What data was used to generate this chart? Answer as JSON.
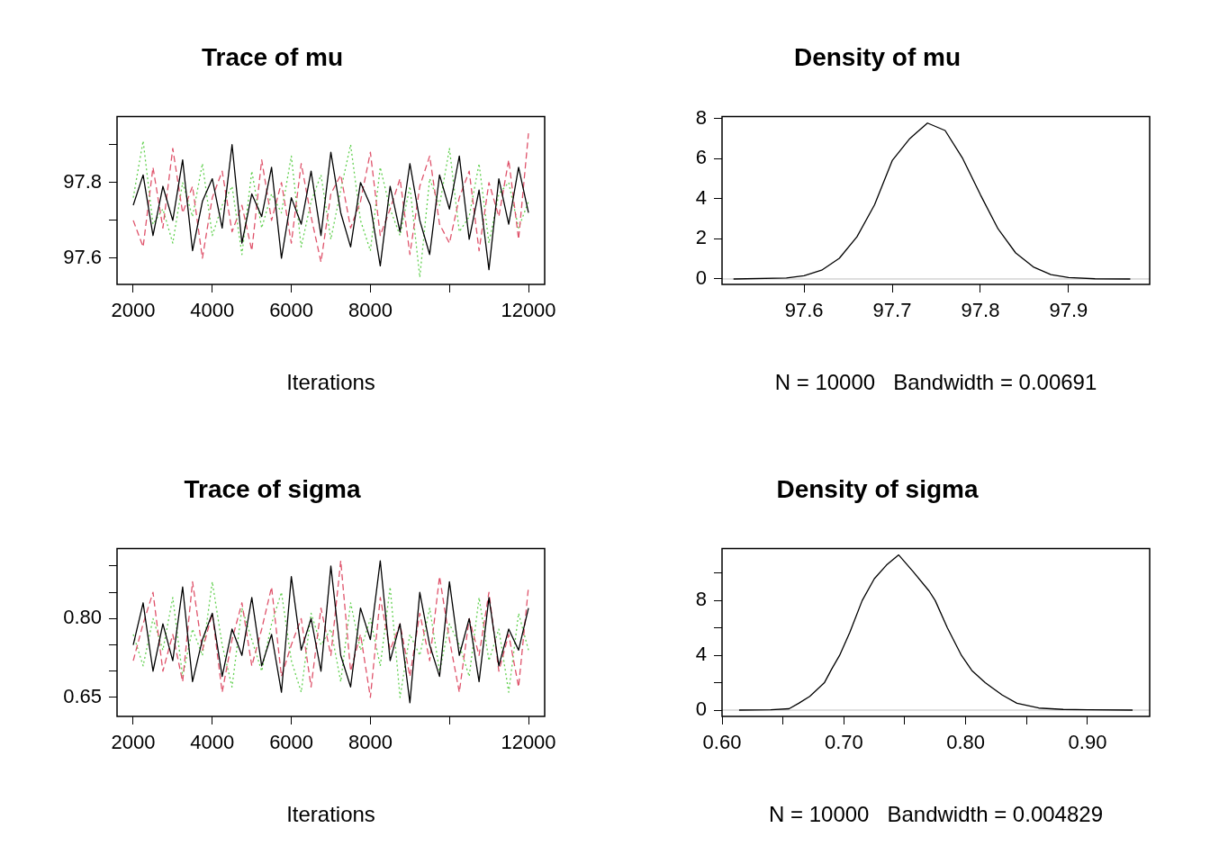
{
  "chart_data": [
    {
      "type": "line",
      "title": "Trace of mu",
      "xlabel": "Iterations",
      "grid": false,
      "legend": false,
      "x": [
        2000,
        2250,
        2500,
        2750,
        3000,
        3250,
        3500,
        3750,
        4000,
        4250,
        4500,
        4750,
        5000,
        5250,
        5500,
        5750,
        6000,
        6250,
        6500,
        6750,
        7000,
        7250,
        7500,
        7750,
        8000,
        8250,
        8500,
        8750,
        9000,
        9250,
        9500,
        9750,
        10000,
        10250,
        10500,
        10750,
        11000,
        11250,
        11500,
        11750,
        12000
      ],
      "xlim": [
        1590,
        12410
      ],
      "xticks": [
        2000,
        4000,
        6000,
        8000,
        {
          "value": 10000,
          "label": null
        },
        12000
      ],
      "ylim": [
        97.531,
        97.974
      ],
      "yticks": [
        97.6,
        {
          "value": 97.7,
          "label": null
        },
        97.8,
        {
          "value": 97.9,
          "label": null
        }
      ],
      "series": [
        {
          "color": "#000000",
          "line_style": "solid",
          "values": [
            97.74,
            97.82,
            97.66,
            97.79,
            97.7,
            97.86,
            97.62,
            97.75,
            97.81,
            97.68,
            97.9,
            97.64,
            97.77,
            97.71,
            97.84,
            97.6,
            97.76,
            97.69,
            97.83,
            97.66,
            97.88,
            97.72,
            97.63,
            97.8,
            97.74,
            97.58,
            97.79,
            97.67,
            97.85,
            97.7,
            97.61,
            97.82,
            97.73,
            97.87,
            97.65,
            97.78,
            97.57,
            97.81,
            97.69,
            97.84,
            97.72
          ]
        },
        {
          "color": "#df536b",
          "line_style": "dashed",
          "values": [
            97.7,
            97.63,
            97.84,
            97.68,
            97.89,
            97.72,
            97.79,
            97.6,
            97.76,
            97.83,
            97.67,
            97.74,
            97.62,
            97.86,
            97.7,
            97.8,
            97.64,
            97.85,
            97.71,
            97.59,
            97.77,
            97.82,
            97.68,
            97.75,
            97.88,
            97.66,
            97.73,
            97.81,
            97.61,
            97.79,
            97.87,
            97.69,
            97.64,
            97.76,
            97.83,
            97.62,
            97.8,
            97.71,
            97.86,
            97.65,
            97.93
          ]
        },
        {
          "color": "#61d04f",
          "line_style": "dotted",
          "values": [
            97.76,
            97.91,
            97.69,
            97.73,
            97.64,
            97.8,
            97.71,
            97.85,
            97.66,
            97.74,
            97.79,
            97.61,
            97.83,
            97.68,
            97.77,
            97.72,
            97.87,
            97.63,
            97.75,
            97.82,
            97.65,
            97.78,
            97.9,
            97.7,
            97.62,
            97.84,
            97.73,
            97.66,
            97.79,
            97.55,
            97.81,
            97.74,
            97.89,
            97.67,
            97.71,
            97.85,
            97.64,
            97.77,
            97.8,
            97.68,
            97.75
          ]
        }
      ]
    },
    {
      "type": "line",
      "title": "Density of mu",
      "xlabel": "N = 10000   Bandwidth = 0.00691",
      "grid": false,
      "legend": false,
      "x": [
        97.52,
        97.58,
        97.6,
        97.62,
        97.64,
        97.66,
        97.68,
        97.7,
        97.72,
        97.74,
        97.76,
        97.78,
        97.8,
        97.82,
        97.84,
        97.86,
        97.88,
        97.9,
        97.93,
        97.97
      ],
      "xlim": [
        97.507,
        97.992
      ],
      "xticks": [
        97.6,
        97.7,
        97.8,
        97.9
      ],
      "ylim": [
        -0.27,
        8.09
      ],
      "yticks": [
        0,
        2,
        4,
        6,
        8
      ],
      "ref_lines": [
        {
          "axis": "y",
          "value": 0,
          "color": "#bebebe"
        }
      ],
      "series": [
        {
          "color": "#000000",
          "values": [
            0,
            0.05,
            0.16,
            0.44,
            1.03,
            2.1,
            3.7,
            5.9,
            7.0,
            7.77,
            7.4,
            6.0,
            4.2,
            2.5,
            1.3,
            0.6,
            0.22,
            0.07,
            0.01,
            0
          ]
        }
      ]
    },
    {
      "type": "line",
      "title": "Trace of sigma",
      "xlabel": "Iterations",
      "grid": false,
      "legend": false,
      "x": [
        2000,
        2250,
        2500,
        2750,
        3000,
        3250,
        3500,
        3750,
        4000,
        4250,
        4500,
        4750,
        5000,
        5250,
        5500,
        5750,
        6000,
        6250,
        6500,
        6750,
        7000,
        7250,
        7500,
        7750,
        8000,
        8250,
        8500,
        8750,
        9000,
        9250,
        9500,
        9750,
        10000,
        10250,
        10500,
        10750,
        11000,
        11250,
        11500,
        11750,
        12000
      ],
      "xlim": [
        1590,
        12410
      ],
      "xticks": [
        2000,
        4000,
        6000,
        8000,
        {
          "value": 10000,
          "label": null
        },
        12000
      ],
      "ylim": [
        0.614,
        0.933
      ],
      "yticks": [
        0.65,
        {
          "value": 0.7,
          "label": null
        },
        {
          "value": 0.75,
          "label": null
        },
        {
          "value": 0.8,
          "label": "0.80"
        },
        {
          "value": 0.85,
          "label": null
        },
        {
          "value": 0.9,
          "label": null
        }
      ],
      "series": [
        {
          "color": "#000000",
          "line_style": "solid",
          "values": [
            0.75,
            0.83,
            0.7,
            0.79,
            0.72,
            0.86,
            0.68,
            0.76,
            0.81,
            0.69,
            0.78,
            0.73,
            0.84,
            0.71,
            0.77,
            0.66,
            0.88,
            0.74,
            0.8,
            0.7,
            0.9,
            0.73,
            0.67,
            0.82,
            0.76,
            0.91,
            0.72,
            0.79,
            0.64,
            0.85,
            0.75,
            0.69,
            0.87,
            0.73,
            0.8,
            0.68,
            0.84,
            0.71,
            0.78,
            0.74,
            0.82
          ]
        },
        {
          "color": "#df536b",
          "line_style": "dashed",
          "values": [
            0.72,
            0.79,
            0.85,
            0.7,
            0.77,
            0.68,
            0.87,
            0.74,
            0.81,
            0.66,
            0.76,
            0.83,
            0.71,
            0.78,
            0.86,
            0.69,
            0.75,
            0.8,
            0.67,
            0.82,
            0.73,
            0.91,
            0.7,
            0.77,
            0.65,
            0.84,
            0.74,
            0.79,
            0.69,
            0.81,
            0.72,
            0.88,
            0.76,
            0.66,
            0.8,
            0.73,
            0.85,
            0.7,
            0.77,
            0.67,
            0.86
          ]
        },
        {
          "color": "#61d04f",
          "line_style": "dotted",
          "values": [
            0.77,
            0.71,
            0.8,
            0.74,
            0.84,
            0.69,
            0.78,
            0.73,
            0.87,
            0.75,
            0.67,
            0.82,
            0.76,
            0.7,
            0.79,
            0.85,
            0.72,
            0.66,
            0.81,
            0.75,
            0.78,
            0.68,
            0.83,
            0.74,
            0.8,
            0.71,
            0.86,
            0.65,
            0.77,
            0.73,
            0.82,
            0.7,
            0.79,
            0.75,
            0.69,
            0.84,
            0.72,
            0.78,
            0.66,
            0.81,
            0.74
          ]
        }
      ]
    },
    {
      "type": "line",
      "title": "Density of sigma",
      "xlabel": "N = 10000   Bandwidth = 0.004829",
      "grid": false,
      "legend": false,
      "x": [
        0.614,
        0.64,
        0.655,
        0.663,
        0.672,
        0.684,
        0.69,
        0.6965,
        0.705,
        0.715,
        0.725,
        0.735,
        0.745,
        0.757,
        0.77,
        0.775,
        0.785,
        0.7965,
        0.805,
        0.816,
        0.83,
        0.842,
        0.86,
        0.88,
        0.9,
        0.937
      ],
      "xlim": [
        0.6,
        0.951
      ],
      "xticks": [
        {
          "value": 0.6,
          "label": "0.60"
        },
        {
          "value": 0.65,
          "label": null
        },
        {
          "value": 0.7,
          "label": "0.70"
        },
        {
          "value": 0.75,
          "label": null
        },
        {
          "value": 0.8,
          "label": "0.80"
        },
        {
          "value": 0.85,
          "label": null
        },
        {
          "value": 0.9,
          "label": "0.90"
        }
      ],
      "ylim": [
        -0.46,
        11.8
      ],
      "yticks": [
        0,
        {
          "value": 2,
          "label": null
        },
        4,
        {
          "value": 6,
          "label": null
        },
        8,
        {
          "value": 10,
          "label": null
        }
      ],
      "ref_lines": [
        {
          "axis": "y",
          "value": 0,
          "color": "#bebebe"
        }
      ],
      "series": [
        {
          "color": "#000000",
          "values": [
            0,
            0.03,
            0.1,
            0.5,
            1.0,
            2,
            3,
            4,
            5.7,
            8,
            9.6,
            10.6,
            11.34,
            10.1,
            8.7,
            8,
            6,
            4,
            2.9,
            2,
            1.1,
            0.5,
            0.15,
            0.05,
            0.02,
            0
          ]
        }
      ]
    }
  ]
}
